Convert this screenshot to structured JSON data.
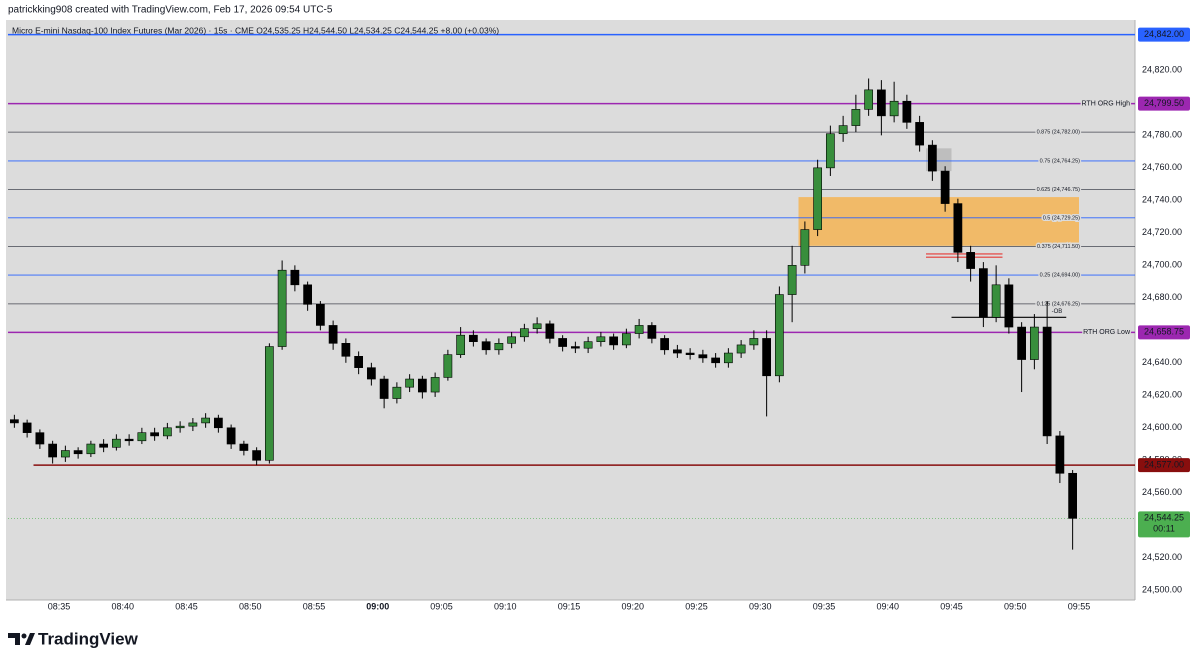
{
  "header": {
    "text": "patrickking908 created with TradingView.com, Feb 17, 2026 09:54 UTC-5"
  },
  "footer": {
    "brand": "TradingView"
  },
  "chart_data": {
    "type": "candlestick",
    "title": "Micro E-mini Nasdaq-100 Index Futures (Mar 2026) · 15s · CME  O24,535.25  H24,544.50  L24,534.25  C24,544.25  +8.00 (+0.03%)",
    "up_color": "#388e3c",
    "down_color": "#000000",
    "x": [
      "08:31",
      "08:32",
      "08:33",
      "08:34",
      "08:35",
      "08:36",
      "08:37",
      "08:38",
      "08:39",
      "08:40",
      "08:41",
      "08:42",
      "08:43",
      "08:44",
      "08:45",
      "08:46",
      "08:47",
      "08:48",
      "08:49",
      "08:50",
      "08:51",
      "08:52",
      "08:53",
      "08:54",
      "08:55",
      "08:56",
      "08:57",
      "08:58",
      "08:59",
      "09:00",
      "09:01",
      "09:02",
      "09:03",
      "09:04",
      "09:05",
      "09:06",
      "09:07",
      "09:08",
      "09:09",
      "09:10",
      "09:11",
      "09:12",
      "09:13",
      "09:14",
      "09:15",
      "09:16",
      "09:17",
      "09:18",
      "09:19",
      "09:20",
      "09:21",
      "09:22",
      "09:23",
      "09:24",
      "09:25",
      "09:26",
      "09:27",
      "09:28",
      "09:29",
      "09:30",
      "09:31",
      "09:32",
      "09:33",
      "09:34",
      "09:35",
      "09:36",
      "09:37",
      "09:38",
      "09:39",
      "09:40",
      "09:41",
      "09:42",
      "09:43",
      "09:44",
      "09:45",
      "09:46",
      "09:47",
      "09:48",
      "09:49",
      "09:50",
      "09:51",
      "09:52",
      "09:53",
      "09:54"
    ],
    "open": [
      24605,
      24603,
      24597,
      24590,
      24582,
      24586,
      24584,
      24590,
      24588,
      24593,
      24592,
      24597,
      24595,
      24600,
      24601,
      24603,
      24606,
      24600,
      24590,
      24586,
      24580,
      24650,
      24697,
      24688,
      24676,
      24663,
      24652,
      24644,
      24637,
      24630,
      24618,
      24625,
      24630,
      24622,
      24631,
      24645,
      24657,
      24653,
      24648,
      24652,
      24656,
      24661,
      24664,
      24655,
      24650,
      24649,
      24653,
      24656,
      24651,
      24658,
      24663,
      24655,
      24648,
      24646,
      24645,
      24643,
      24640,
      24646,
      24651,
      24655,
      24632,
      24682,
      24700,
      24722,
      24760,
      24781,
      24786,
      24796,
      24808,
      24792,
      24801,
      24788,
      24774,
      24758,
      24738,
      24708,
      24698,
      24668,
      24688,
      24662,
      24642,
      24662,
      24595,
      24572
    ],
    "high": [
      24608,
      24605,
      24599,
      24592,
      24589,
      24588,
      24592,
      24593,
      24596,
      24596,
      24600,
      24600,
      24603,
      24604,
      24606,
      24609,
      24608,
      24602,
      24592,
      24588,
      24652,
      24703,
      24700,
      24690,
      24678,
      24666,
      24655,
      24647,
      24640,
      24632,
      24628,
      24633,
      24632,
      24634,
      24648,
      24662,
      24660,
      24655,
      24655,
      24659,
      24664,
      24668,
      24666,
      24657,
      24653,
      24656,
      24659,
      24658,
      24661,
      24667,
      24665,
      24657,
      24651,
      24649,
      24648,
      24646,
      24649,
      24654,
      24660,
      24660,
      24687,
      24712,
      24727,
      24765,
      24786,
      24792,
      24805,
      24815,
      24814,
      24813,
      24805,
      24792,
      24777,
      24761,
      24741,
      24712,
      24702,
      24700,
      24692,
      24665,
      24670,
      24678,
      24598,
      24574
    ],
    "low": [
      24600,
      24594,
      24587,
      24578,
      24579,
      24581,
      24582,
      24585,
      24586,
      24589,
      24590,
      24592,
      24593,
      24597,
      24598,
      24600,
      24597,
      24587,
      24583,
      24577,
      24578,
      24648,
      24684,
      24672,
      24660,
      24648,
      24640,
      24633,
      24626,
      24612,
      24615,
      24622,
      24618,
      24619,
      24629,
      24643,
      24650,
      24645,
      24645,
      24649,
      24653,
      24658,
      24652,
      24647,
      24646,
      24646,
      24650,
      24648,
      24649,
      24655,
      24652,
      24645,
      24643,
      24642,
      24640,
      24637,
      24637,
      24643,
      24648,
      24607,
      24628,
      24665,
      24695,
      24718,
      24755,
      24776,
      24782,
      24792,
      24780,
      24788,
      24784,
      24770,
      24752,
      24733,
      24702,
      24690,
      24662,
      24665,
      24658,
      24622,
      24636,
      24590,
      24566,
      24525
    ],
    "close": [
      24603,
      24597,
      24590,
      24582,
      24586,
      24584,
      24590,
      24588,
      24593,
      24592,
      24597,
      24595,
      24600,
      24601,
      24603,
      24606,
      24600,
      24590,
      24586,
      24580,
      24650,
      24697,
      24688,
      24676,
      24663,
      24652,
      24644,
      24637,
      24630,
      24618,
      24625,
      24630,
      24622,
      24631,
      24645,
      24657,
      24653,
      24648,
      24652,
      24656,
      24661,
      24664,
      24655,
      24650,
      24649,
      24653,
      24656,
      24651,
      24658,
      24663,
      24655,
      24648,
      24646,
      24645,
      24643,
      24640,
      24646,
      24651,
      24655,
      24632,
      24682,
      24700,
      24722,
      24760,
      24781,
      24786,
      24796,
      24808,
      24792,
      24801,
      24788,
      24774,
      24758,
      24738,
      24708,
      24698,
      24668,
      24688,
      24662,
      24642,
      24662,
      24595,
      24572,
      24544.25
    ],
    "xlim": [
      "08:31",
      "09:59"
    ],
    "xticks": [
      {
        "value": "08:35",
        "label": "08:35"
      },
      {
        "value": "08:40",
        "label": "08:40"
      },
      {
        "value": "08:45",
        "label": "08:45"
      },
      {
        "value": "08:50",
        "label": "08:50"
      },
      {
        "value": "08:55",
        "label": "08:55"
      },
      {
        "value": "09:00",
        "label": "09:00",
        "bold": true
      },
      {
        "value": "09:05",
        "label": "09:05"
      },
      {
        "value": "09:10",
        "label": "09:10"
      },
      {
        "value": "09:15",
        "label": "09:15"
      },
      {
        "value": "09:20",
        "label": "09:20"
      },
      {
        "value": "09:25",
        "label": "09:25"
      },
      {
        "value": "09:30",
        "label": "09:30"
      },
      {
        "value": "09:35",
        "label": "09:35"
      },
      {
        "value": "09:40",
        "label": "09:40"
      },
      {
        "value": "09:45",
        "label": "09:45"
      },
      {
        "value": "09:50",
        "label": "09:50"
      },
      {
        "value": "09:55",
        "label": "09:55"
      }
    ],
    "ylim": [
      24494,
      24851
    ],
    "yticks": [
      {
        "value": 24500,
        "label": "24,500.00"
      },
      {
        "value": 24520,
        "label": "24,520.00"
      },
      {
        "value": 24560,
        "label": "24,560.00"
      },
      {
        "value": 24580,
        "label": "24,580.00"
      },
      {
        "value": 24600,
        "label": "24,600.00"
      },
      {
        "value": 24620,
        "label": "24,620.00"
      },
      {
        "value": 24640,
        "label": "24,640.00"
      },
      {
        "value": 24680,
        "label": "24,680.00"
      },
      {
        "value": 24700,
        "label": "24,700.00"
      },
      {
        "value": 24720,
        "label": "24,720.00"
      },
      {
        "value": 24740,
        "label": "24,740.00"
      },
      {
        "value": 24760,
        "label": "24,760.00"
      },
      {
        "value": 24780,
        "label": "24,780.00"
      },
      {
        "value": 24820,
        "label": "24,820.00"
      }
    ],
    "grid": false,
    "price_lines": [
      {
        "value": 24842,
        "label": "24,842.00",
        "color": "#2962ff"
      },
      {
        "value": 24799.5,
        "label": "24,799.50",
        "name": "RTH ORG High",
        "color": "#9c27b0"
      },
      {
        "value": 24658.75,
        "label": "24,658.75",
        "name": "RTH ORG Low",
        "color": "#9c27b0"
      },
      {
        "value": 24577,
        "label": "24,577.00",
        "color": "#880e0e",
        "start": "08:33"
      }
    ],
    "fib_levels": [
      {
        "value": 24782,
        "label": "0.875 (24,782.00)",
        "color": "#434651"
      },
      {
        "value": 24764.25,
        "label": "0.75 (24,764.25)",
        "color": "#2962ff"
      },
      {
        "value": 24746.75,
        "label": "0.625 (24,746.75)",
        "color": "#434651"
      },
      {
        "value": 24729.25,
        "label": "0.5 (24,729.25)",
        "color": "#2962ff"
      },
      {
        "value": 24711.5,
        "label": "0.375 (24,711.50)",
        "color": "#434651"
      },
      {
        "value": 24694,
        "label": "0.25 (24,694.00)",
        "color": "#2962ff"
      },
      {
        "value": 24676.25,
        "label": "0.125 (24,676.25)",
        "color": "#434651"
      }
    ],
    "zones": [
      {
        "high": 24742,
        "low": 24712,
        "start": "09:33",
        "end": "09:55",
        "color": "#f5b454"
      },
      {
        "high": 24772,
        "low": 24758,
        "start": "09:43",
        "end": "09:45",
        "color": "#b8b8b8"
      }
    ],
    "segments": [
      {
        "value": 24707,
        "start": "09:43",
        "end": "09:49",
        "color": "#e53935"
      },
      {
        "value": 24705,
        "start": "09:43",
        "end": "09:49",
        "color": "#e53935"
      },
      {
        "value": 24668,
        "start": "09:45",
        "end": "09:54",
        "color": "#000000",
        "label": "-OB"
      }
    ],
    "last_price": {
      "value": 24544.25,
      "label": "24,544.25",
      "countdown": "00:11",
      "color": "#4caf50"
    }
  }
}
